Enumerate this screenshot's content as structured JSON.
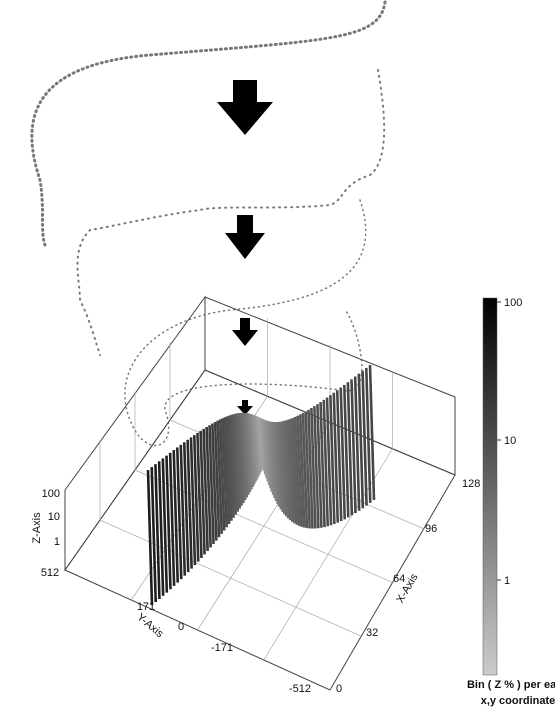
{
  "axes": {
    "z_title": "Z-Axis",
    "y_title": "Y-Axis",
    "x_title": "X-Axis",
    "z_ticks": [
      "100",
      "10",
      "1"
    ],
    "y_ticks": [
      "512",
      "171",
      "0",
      "-171",
      "-512"
    ],
    "x_ticks": [
      "0",
      "32",
      "64",
      "96",
      "128"
    ]
  },
  "colorbar": {
    "ticks": [
      "100",
      "10",
      "1"
    ],
    "label": [
      "Bin ( Z % ) per each",
      "x,y coordinate"
    ]
  }
}
